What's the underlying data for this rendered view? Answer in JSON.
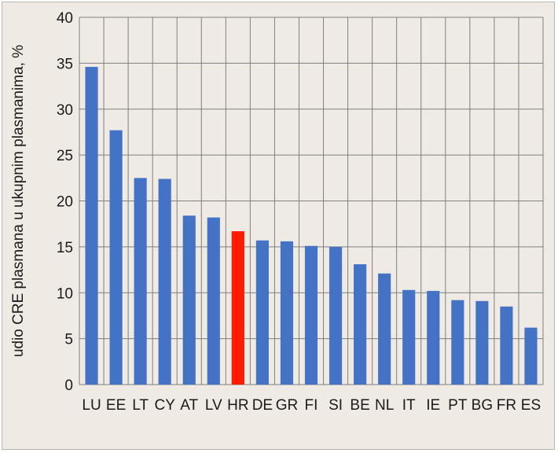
{
  "chart_data": {
    "type": "bar",
    "title": "",
    "xlabel": "",
    "ylabel": "udio CRE plasmana u ukupnim plasmanima, %",
    "ylim": [
      0,
      40
    ],
    "yticks": [
      0,
      5,
      10,
      15,
      20,
      25,
      30,
      35,
      40
    ],
    "grid": true,
    "categories": [
      "LU",
      "EE",
      "LT",
      "CY",
      "AT",
      "LV",
      "HR",
      "DE",
      "GR",
      "FI",
      "SI",
      "BE",
      "NL",
      "IT",
      "IE",
      "PT",
      "BG",
      "FR",
      "ES"
    ],
    "values": [
      34.6,
      27.7,
      22.5,
      22.4,
      18.4,
      18.2,
      16.7,
      15.7,
      15.6,
      15.1,
      15.0,
      13.1,
      12.1,
      10.3,
      10.2,
      9.2,
      9.1,
      8.5,
      6.2
    ],
    "highlight_category": "HR",
    "colors": {
      "bar": "#4472c4",
      "highlight": "#ff1a00",
      "grid": "#7f7f7f",
      "background": "#efebe4"
    }
  }
}
